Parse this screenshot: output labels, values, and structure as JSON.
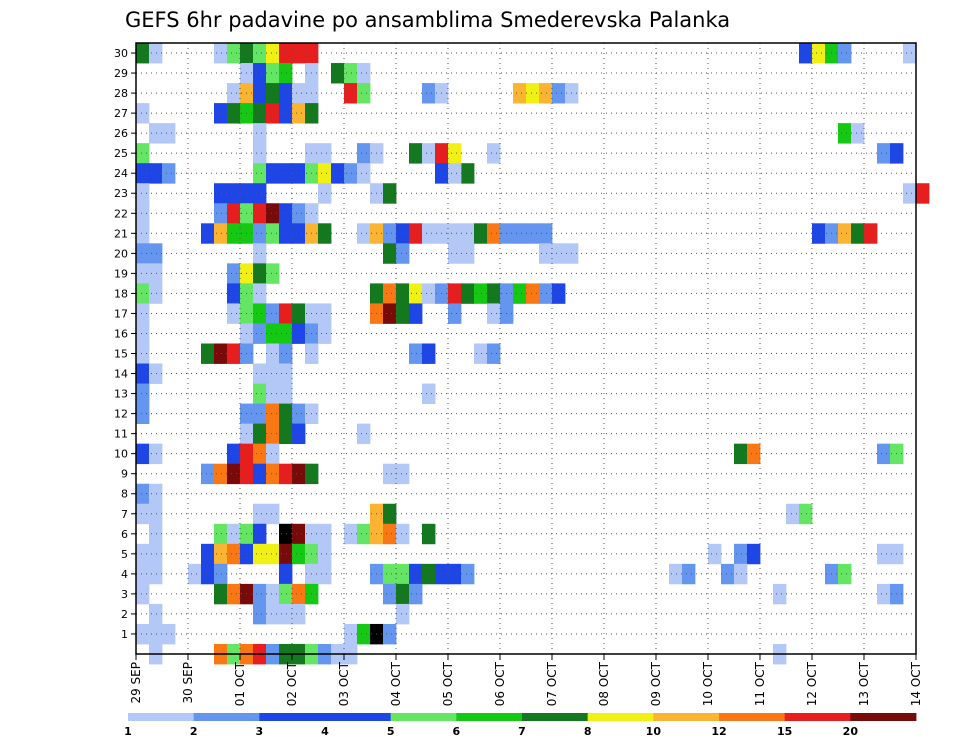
{
  "chart_data": {
    "type": "heatmap",
    "title": "GEFS 6hr padavine po ansamblima Smederevska Palanka",
    "xlabel": "",
    "ylabel": "",
    "x_axis": {
      "start_date": "29 SEP",
      "step_hours": 6,
      "steps_per_day": 4,
      "num_steps": 61,
      "tick_labels": [
        "29 SEP",
        "30 SEP",
        "01 OCT",
        "02 OCT",
        "03 OCT",
        "04 OCT",
        "05 OCT",
        "06 OCT",
        "07 OCT",
        "08 OCT",
        "09 OCT",
        "10 OCT",
        "11 OCT",
        "12 OCT",
        "13 OCT",
        "14 OCT"
      ]
    },
    "y_axis": {
      "members_min": 0,
      "members_max": 30,
      "tick_labels": [
        "1",
        "2",
        "3",
        "4",
        "5",
        "6",
        "7",
        "8",
        "9",
        "10",
        "11",
        "12",
        "13",
        "14",
        "15",
        "16",
        "17",
        "18",
        "19",
        "20",
        "21",
        "22",
        "23",
        "24",
        "25",
        "26",
        "27",
        "28",
        "29",
        "30"
      ]
    },
    "grid": true,
    "legend": {
      "position": "bottom",
      "labels": [
        "1",
        "2",
        "3",
        "4",
        "5",
        "6",
        "7",
        "8",
        "10",
        "12",
        "15",
        "20"
      ],
      "colors": [
        "#b4c8f7",
        "#6496f0",
        "#1e46e6",
        "#1e46e6",
        "#64e664",
        "#14c814",
        "#14781e",
        "#f0f014",
        "#fab432",
        "#fa7814",
        "#e61e1e",
        "#780a0a"
      ]
    },
    "levels_mm": [
      1,
      2,
      3,
      4,
      5,
      6,
      7,
      8,
      10,
      12,
      15,
      20
    ],
    "color_scale": [
      "#ffffff",
      "#b4c8f7",
      "#6496f0",
      "#1e46e6",
      "#64e664",
      "#14c814",
      "#14781e",
      "#f0f014",
      "#fab432",
      "#fa7814",
      "#e61e1e",
      "#780a0a"
    ],
    "cells_format": "[time_step, member, class]",
    "cells": [
      [
        1,
        0,
        1
      ],
      [
        0,
        1,
        1
      ],
      [
        0,
        30,
        6
      ],
      [
        1,
        30,
        1
      ],
      [
        6,
        30,
        1
      ],
      [
        7,
        30,
        4
      ],
      [
        8,
        30,
        6
      ],
      [
        9,
        30,
        4
      ],
      [
        10,
        30,
        7
      ],
      [
        11,
        30,
        10
      ],
      [
        12,
        30,
        10
      ],
      [
        13,
        30,
        10
      ],
      [
        51,
        30,
        3
      ],
      [
        52,
        30,
        7
      ],
      [
        53,
        30,
        5
      ],
      [
        54,
        30,
        2
      ],
      [
        59,
        30,
        1
      ],
      [
        8,
        29,
        1
      ],
      [
        9,
        29,
        3
      ],
      [
        10,
        29,
        4
      ],
      [
        11,
        29,
        5
      ],
      [
        13,
        29,
        1
      ],
      [
        15,
        29,
        6
      ],
      [
        16,
        29,
        4
      ],
      [
        17,
        29,
        1
      ],
      [
        7,
        28,
        1
      ],
      [
        8,
        28,
        8
      ],
      [
        9,
        28,
        3
      ],
      [
        10,
        28,
        6
      ],
      [
        11,
        28,
        3
      ],
      [
        12,
        28,
        1
      ],
      [
        13,
        28,
        1
      ],
      [
        16,
        28,
        10
      ],
      [
        17,
        28,
        4
      ],
      [
        22,
        28,
        2
      ],
      [
        23,
        28,
        1
      ],
      [
        29,
        28,
        8
      ],
      [
        30,
        28,
        7
      ],
      [
        31,
        28,
        8
      ],
      [
        32,
        28,
        2
      ],
      [
        33,
        28,
        1
      ],
      [
        0,
        27,
        1
      ],
      [
        6,
        27,
        3
      ],
      [
        7,
        27,
        6
      ],
      [
        8,
        27,
        5
      ],
      [
        9,
        27,
        6
      ],
      [
        10,
        27,
        10
      ],
      [
        11,
        27,
        3
      ],
      [
        12,
        27,
        8
      ],
      [
        13,
        27,
        6
      ],
      [
        1,
        26,
        1
      ],
      [
        2,
        26,
        1
      ],
      [
        9,
        26,
        1
      ],
      [
        54,
        26,
        5
      ],
      [
        55,
        26,
        1
      ],
      [
        0,
        25,
        4
      ],
      [
        9,
        25,
        1
      ],
      [
        13,
        25,
        1
      ],
      [
        14,
        25,
        1
      ],
      [
        17,
        25,
        2
      ],
      [
        18,
        25,
        1
      ],
      [
        21,
        25,
        6
      ],
      [
        22,
        25,
        1
      ],
      [
        23,
        25,
        10
      ],
      [
        24,
        25,
        7
      ],
      [
        27,
        25,
        1
      ],
      [
        57,
        25,
        2
      ],
      [
        58,
        25,
        3
      ],
      [
        0,
        24,
        3
      ],
      [
        1,
        24,
        3
      ],
      [
        2,
        24,
        2
      ],
      [
        9,
        24,
        4
      ],
      [
        10,
        24,
        3
      ],
      [
        11,
        24,
        3
      ],
      [
        12,
        24,
        3
      ],
      [
        13,
        24,
        4
      ],
      [
        14,
        24,
        7
      ],
      [
        15,
        24,
        3
      ],
      [
        16,
        24,
        2
      ],
      [
        17,
        24,
        1
      ],
      [
        25,
        24,
        6
      ],
      [
        23,
        24,
        3
      ],
      [
        24,
        24,
        1
      ],
      [
        0,
        23,
        1
      ],
      [
        6,
        23,
        3
      ],
      [
        7,
        23,
        3
      ],
      [
        8,
        23,
        3
      ],
      [
        9,
        23,
        3
      ],
      [
        14,
        23,
        1
      ],
      [
        18,
        23,
        1
      ],
      [
        19,
        23,
        6
      ],
      [
        59,
        23,
        1
      ],
      [
        60,
        23,
        10
      ],
      [
        0,
        22,
        1
      ],
      [
        6,
        22,
        2
      ],
      [
        7,
        22,
        10
      ],
      [
        8,
        22,
        4
      ],
      [
        9,
        22,
        10
      ],
      [
        10,
        22,
        11
      ],
      [
        11,
        22,
        3
      ],
      [
        12,
        22,
        2
      ],
      [
        13,
        22,
        1
      ],
      [
        0,
        21,
        1
      ],
      [
        5,
        21,
        3
      ],
      [
        6,
        21,
        8
      ],
      [
        7,
        21,
        5
      ],
      [
        8,
        21,
        5
      ],
      [
        9,
        21,
        2
      ],
      [
        10,
        21,
        4
      ],
      [
        11,
        21,
        3
      ],
      [
        12,
        21,
        3
      ],
      [
        13,
        21,
        8
      ],
      [
        14,
        21,
        6
      ],
      [
        17,
        21,
        1
      ],
      [
        18,
        21,
        8
      ],
      [
        19,
        21,
        2
      ],
      [
        20,
        21,
        3
      ],
      [
        21,
        21,
        10
      ],
      [
        22,
        21,
        1
      ],
      [
        23,
        21,
        1
      ],
      [
        24,
        21,
        1
      ],
      [
        25,
        21,
        1
      ],
      [
        26,
        21,
        6
      ],
      [
        27,
        21,
        9
      ],
      [
        28,
        21,
        2
      ],
      [
        29,
        21,
        2
      ],
      [
        30,
        21,
        2
      ],
      [
        31,
        21,
        2
      ],
      [
        52,
        21,
        3
      ],
      [
        53,
        21,
        2
      ],
      [
        54,
        21,
        8
      ],
      [
        55,
        21,
        6
      ],
      [
        56,
        21,
        10
      ],
      [
        0,
        20,
        2
      ],
      [
        1,
        20,
        2
      ],
      [
        9,
        20,
        1
      ],
      [
        19,
        20,
        6
      ],
      [
        20,
        20,
        2
      ],
      [
        24,
        20,
        1
      ],
      [
        25,
        20,
        1
      ],
      [
        31,
        20,
        1
      ],
      [
        32,
        20,
        1
      ],
      [
        33,
        20,
        1
      ],
      [
        0,
        19,
        1
      ],
      [
        1,
        19,
        1
      ],
      [
        7,
        19,
        2
      ],
      [
        8,
        19,
        7
      ],
      [
        9,
        19,
        6
      ],
      [
        10,
        19,
        4
      ],
      [
        0,
        18,
        4
      ],
      [
        1,
        18,
        1
      ],
      [
        7,
        18,
        3
      ],
      [
        8,
        18,
        4
      ],
      [
        9,
        18,
        1
      ],
      [
        18,
        18,
        6
      ],
      [
        19,
        18,
        9
      ],
      [
        20,
        18,
        6
      ],
      [
        21,
        18,
        7
      ],
      [
        22,
        18,
        1
      ],
      [
        23,
        18,
        2
      ],
      [
        24,
        18,
        10
      ],
      [
        25,
        18,
        6
      ],
      [
        26,
        18,
        5
      ],
      [
        27,
        18,
        6
      ],
      [
        28,
        18,
        2
      ],
      [
        29,
        18,
        5
      ],
      [
        30,
        18,
        9
      ],
      [
        31,
        18,
        2
      ],
      [
        32,
        18,
        3
      ],
      [
        0,
        17,
        1
      ],
      [
        7,
        17,
        1
      ],
      [
        8,
        17,
        4
      ],
      [
        9,
        17,
        5
      ],
      [
        10,
        17,
        2
      ],
      [
        11,
        17,
        10
      ],
      [
        12,
        17,
        6
      ],
      [
        13,
        17,
        1
      ],
      [
        14,
        17,
        1
      ],
      [
        18,
        17,
        9
      ],
      [
        19,
        17,
        11
      ],
      [
        20,
        17,
        6
      ],
      [
        21,
        17,
        3
      ],
      [
        24,
        17,
        2
      ],
      [
        27,
        17,
        1
      ],
      [
        28,
        17,
        2
      ],
      [
        0,
        16,
        1
      ],
      [
        8,
        16,
        1
      ],
      [
        9,
        16,
        2
      ],
      [
        10,
        16,
        5
      ],
      [
        11,
        16,
        5
      ],
      [
        12,
        16,
        3
      ],
      [
        13,
        16,
        2
      ],
      [
        14,
        16,
        1
      ],
      [
        0,
        15,
        1
      ],
      [
        5,
        15,
        6
      ],
      [
        6,
        15,
        11
      ],
      [
        7,
        15,
        10
      ],
      [
        8,
        15,
        2
      ],
      [
        10,
        15,
        1
      ],
      [
        11,
        15,
        2
      ],
      [
        13,
        15,
        1
      ],
      [
        21,
        15,
        2
      ],
      [
        22,
        15,
        3
      ],
      [
        26,
        15,
        1
      ],
      [
        27,
        15,
        2
      ],
      [
        0,
        14,
        3
      ],
      [
        1,
        14,
        1
      ],
      [
        9,
        14,
        1
      ],
      [
        10,
        14,
        1
      ],
      [
        11,
        14,
        1
      ],
      [
        0,
        13,
        2
      ],
      [
        9,
        13,
        4
      ],
      [
        10,
        13,
        1
      ],
      [
        11,
        13,
        1
      ],
      [
        22,
        13,
        1
      ],
      [
        0,
        12,
        2
      ],
      [
        8,
        12,
        2
      ],
      [
        9,
        12,
        2
      ],
      [
        10,
        12,
        9
      ],
      [
        11,
        12,
        6
      ],
      [
        12,
        12,
        2
      ],
      [
        13,
        12,
        1
      ],
      [
        8,
        11,
        1
      ],
      [
        9,
        11,
        6
      ],
      [
        10,
        11,
        9
      ],
      [
        11,
        11,
        6
      ],
      [
        12,
        11,
        3
      ],
      [
        17,
        11,
        1
      ],
      [
        0,
        10,
        3
      ],
      [
        1,
        10,
        1
      ],
      [
        7,
        10,
        3
      ],
      [
        8,
        10,
        10
      ],
      [
        9,
        10,
        9
      ],
      [
        10,
        10,
        1
      ],
      [
        46,
        10,
        6
      ],
      [
        47,
        10,
        9
      ],
      [
        57,
        10,
        2
      ],
      [
        58,
        10,
        4
      ],
      [
        5,
        9,
        2
      ],
      [
        6,
        9,
        9
      ],
      [
        7,
        9,
        11
      ],
      [
        8,
        9,
        10
      ],
      [
        9,
        9,
        3
      ],
      [
        10,
        9,
        9
      ],
      [
        11,
        9,
        10
      ],
      [
        12,
        9,
        11
      ],
      [
        13,
        9,
        6
      ],
      [
        19,
        9,
        1
      ],
      [
        20,
        9,
        1
      ],
      [
        0,
        8,
        2
      ],
      [
        1,
        8,
        1
      ],
      [
        0,
        7,
        1
      ],
      [
        1,
        7,
        1
      ],
      [
        9,
        7,
        1
      ],
      [
        10,
        7,
        1
      ],
      [
        18,
        7,
        8
      ],
      [
        19,
        7,
        6
      ],
      [
        50,
        7,
        1
      ],
      [
        51,
        7,
        4
      ],
      [
        1,
        6,
        1
      ],
      [
        6,
        6,
        4
      ],
      [
        7,
        6,
        1
      ],
      [
        8,
        6,
        4
      ],
      [
        9,
        6,
        3
      ],
      [
        11,
        6,
        12
      ],
      [
        12,
        6,
        11
      ],
      [
        13,
        6,
        1
      ],
      [
        14,
        6,
        1
      ],
      [
        16,
        6,
        1
      ],
      [
        17,
        6,
        4
      ],
      [
        18,
        6,
        8
      ],
      [
        19,
        6,
        9
      ],
      [
        20,
        6,
        1
      ],
      [
        22,
        6,
        6
      ],
      [
        0,
        5,
        1
      ],
      [
        1,
        5,
        1
      ],
      [
        5,
        5,
        3
      ],
      [
        6,
        5,
        8
      ],
      [
        7,
        5,
        9
      ],
      [
        8,
        5,
        3
      ],
      [
        9,
        5,
        7
      ],
      [
        10,
        5,
        7
      ],
      [
        11,
        5,
        11
      ],
      [
        12,
        5,
        5
      ],
      [
        13,
        5,
        4
      ],
      [
        14,
        5,
        1
      ],
      [
        44,
        5,
        1
      ],
      [
        46,
        5,
        2
      ],
      [
        47,
        5,
        3
      ],
      [
        57,
        5,
        1
      ],
      [
        58,
        5,
        1
      ],
      [
        0,
        4,
        1
      ],
      [
        1,
        4,
        1
      ],
      [
        4,
        4,
        1
      ],
      [
        5,
        4,
        3
      ],
      [
        6,
        4,
        2
      ],
      [
        11,
        4,
        3
      ],
      [
        13,
        4,
        1
      ],
      [
        14,
        4,
        1
      ],
      [
        18,
        4,
        2
      ],
      [
        19,
        4,
        4
      ],
      [
        20,
        4,
        4
      ],
      [
        21,
        4,
        3
      ],
      [
        22,
        4,
        6
      ],
      [
        23,
        4,
        3
      ],
      [
        24,
        4,
        3
      ],
      [
        25,
        4,
        2
      ],
      [
        41,
        4,
        1
      ],
      [
        42,
        4,
        2
      ],
      [
        45,
        4,
        2
      ],
      [
        46,
        4,
        1
      ],
      [
        53,
        4,
        2
      ],
      [
        54,
        4,
        4
      ],
      [
        0,
        3,
        1
      ],
      [
        6,
        3,
        6
      ],
      [
        7,
        3,
        9
      ],
      [
        8,
        3,
        11
      ],
      [
        9,
        3,
        2
      ],
      [
        10,
        3,
        1
      ],
      [
        11,
        3,
        4
      ],
      [
        12,
        3,
        9
      ],
      [
        13,
        3,
        5
      ],
      [
        19,
        3,
        2
      ],
      [
        20,
        3,
        6
      ],
      [
        21,
        3,
        2
      ],
      [
        49,
        3,
        1
      ],
      [
        57,
        3,
        1
      ],
      [
        58,
        3,
        2
      ],
      [
        1,
        2,
        1
      ],
      [
        9,
        2,
        2
      ],
      [
        10,
        2,
        1
      ],
      [
        11,
        2,
        1
      ],
      [
        12,
        2,
        1
      ],
      [
        20,
        2,
        1
      ],
      [
        1,
        1,
        1
      ],
      [
        2,
        1,
        1
      ],
      [
        16,
        1,
        1
      ],
      [
        17,
        1,
        5
      ],
      [
        18,
        1,
        12
      ],
      [
        19,
        1,
        2
      ],
      [
        6,
        0,
        9
      ],
      [
        7,
        0,
        4
      ],
      [
        8,
        0,
        9
      ],
      [
        9,
        0,
        10
      ],
      [
        10,
        0,
        2
      ],
      [
        11,
        0,
        6
      ],
      [
        12,
        0,
        6
      ],
      [
        13,
        0,
        4
      ],
      [
        14,
        0,
        2
      ],
      [
        15,
        0,
        1
      ],
      [
        16,
        0,
        1
      ],
      [
        49,
        0,
        1
      ]
    ]
  }
}
